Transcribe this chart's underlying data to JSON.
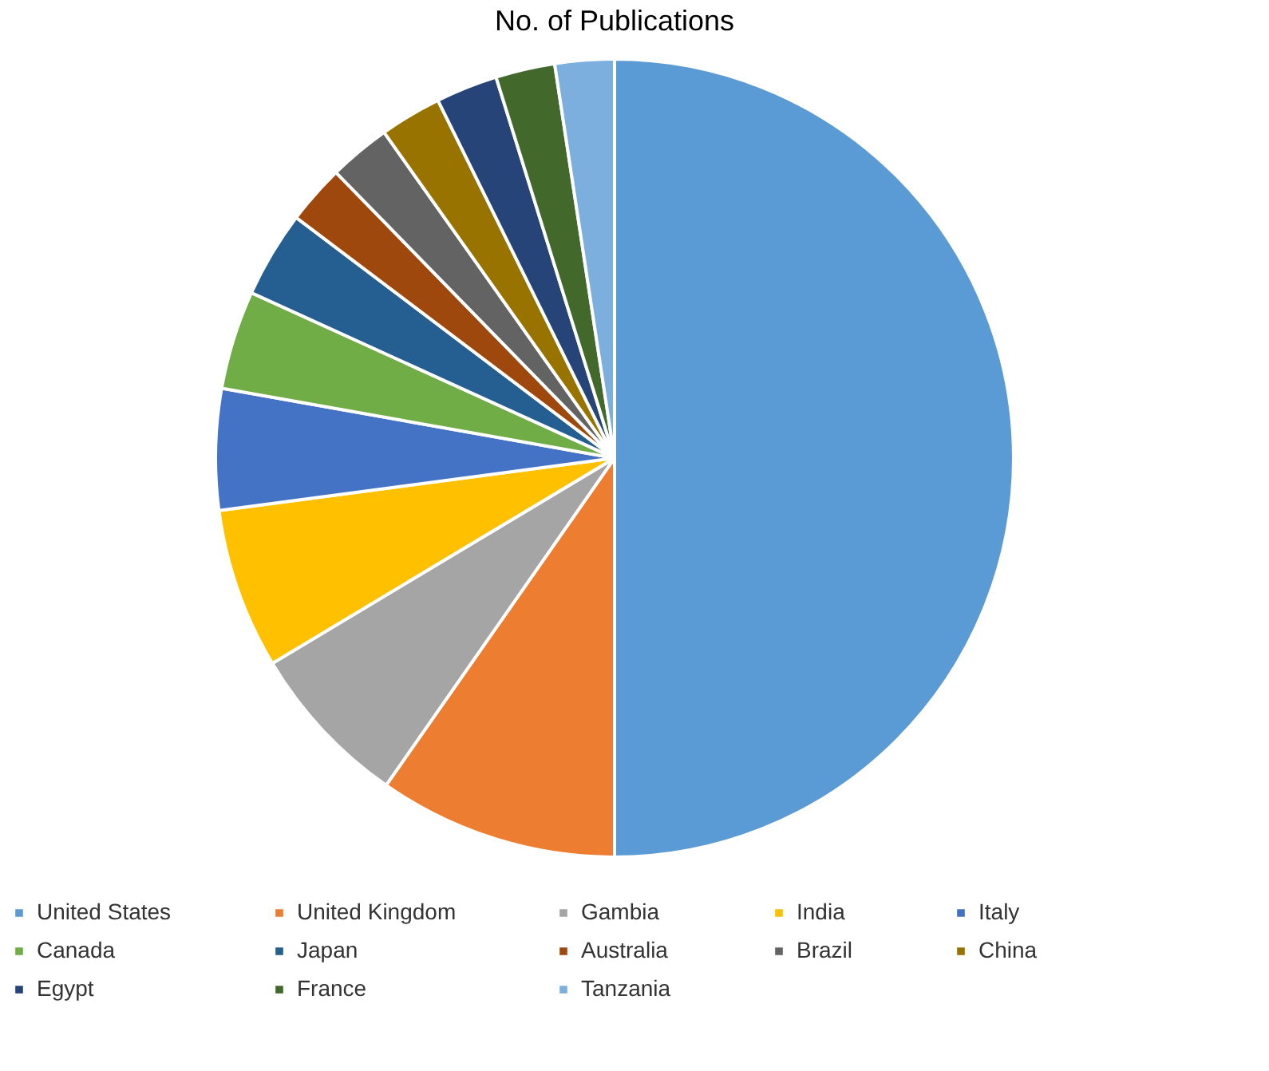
{
  "chart_data": {
    "type": "pie",
    "title": "No. of Publications",
    "categories": [
      "United States",
      "United Kingdom",
      "Gambia",
      "India",
      "Italy",
      "Canada",
      "Japan",
      "Australia",
      "Brazil",
      "China",
      "Egypt",
      "France",
      "Tanzania"
    ],
    "values": [
      50,
      9.7,
      6.7,
      6.5,
      4.9,
      4,
      3.5,
      2.4,
      2.5,
      2.5,
      2.5,
      2.4,
      2.4
    ],
    "colors": [
      "#5b9bd5",
      "#ed7d31",
      "#a5a5a5",
      "#ffc000",
      "#4472c4",
      "#70ad47",
      "#255e91",
      "#9e480e",
      "#636363",
      "#997300",
      "#264478",
      "#43682b",
      "#7cafdd"
    ],
    "legend": "bottom"
  }
}
